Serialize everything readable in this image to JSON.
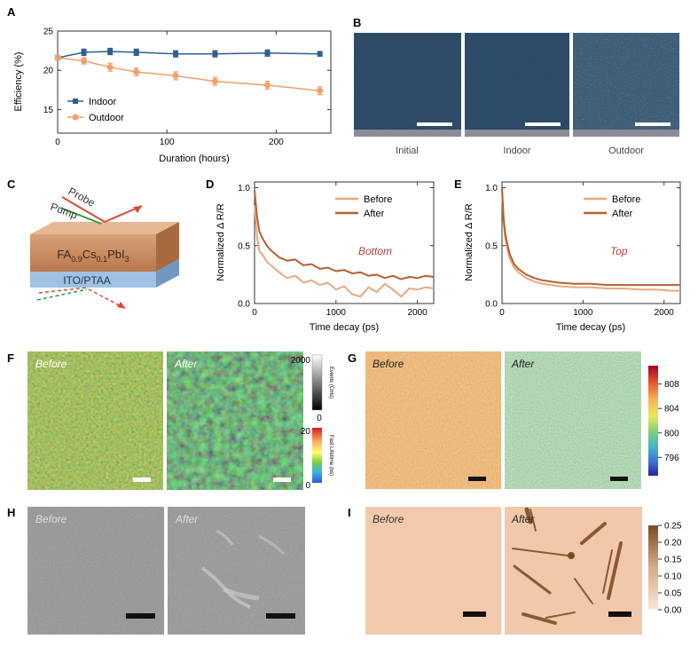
{
  "panel_labels": {
    "a": "A",
    "b": "B",
    "c": "C",
    "d": "D",
    "e": "E",
    "f": "F",
    "g": "G",
    "h": "H",
    "i": "I"
  },
  "chart_data": [
    {
      "id": "A",
      "type": "line",
      "xlabel": "Duration (hours)",
      "ylabel": "Efficiency (%)",
      "xlim": [
        0,
        250
      ],
      "ylim": [
        12,
        25
      ],
      "x_ticks": [
        0,
        100,
        200
      ],
      "y_ticks": [
        15,
        20,
        25
      ],
      "legend_position": "bottom-left",
      "series": [
        {
          "name": "Indoor",
          "color": "#2f5f8f",
          "marker": "square",
          "x": [
            0,
            24,
            48,
            72,
            108,
            144,
            192,
            240
          ],
          "y": [
            21.6,
            22.3,
            22.4,
            22.3,
            22.1,
            22.1,
            22.2,
            22.1
          ],
          "err": [
            0.3,
            0.4,
            0.4,
            0.4,
            0.4,
            0.4,
            0.4,
            0.3
          ]
        },
        {
          "name": "Outdoor",
          "color": "#f0a06a",
          "marker": "circle",
          "x": [
            0,
            24,
            48,
            72,
            108,
            144,
            192,
            240
          ],
          "y": [
            21.6,
            21.2,
            20.4,
            19.8,
            19.3,
            18.6,
            18.1,
            17.4
          ],
          "err": [
            0.3,
            0.4,
            0.5,
            0.5,
            0.5,
            0.5,
            0.5,
            0.5
          ]
        }
      ]
    },
    {
      "id": "D",
      "type": "line",
      "xlabel": "Time decay (ps)",
      "ylabel": "Normalized Δ R/R",
      "xlim": [
        0,
        2200
      ],
      "ylim": [
        0,
        1.05
      ],
      "x_ticks": [
        0,
        1000,
        2000
      ],
      "y_ticks": [
        0.0,
        0.5,
        1.0
      ],
      "annotation": "Bottom",
      "legend_position": "top-right",
      "series": [
        {
          "name": "Before",
          "color": "#e8a882",
          "x": [
            0,
            30,
            60,
            100,
            150,
            200,
            300,
            400,
            500,
            600,
            700,
            800,
            900,
            1000,
            1100,
            1200,
            1300,
            1400,
            1500,
            1600,
            1700,
            1800,
            1900,
            2000,
            2100,
            2200
          ],
          "y": [
            0.85,
            0.58,
            0.45,
            0.42,
            0.36,
            0.33,
            0.27,
            0.22,
            0.24,
            0.18,
            0.2,
            0.16,
            0.18,
            0.12,
            0.15,
            0.08,
            0.06,
            0.14,
            0.1,
            0.17,
            0.12,
            0.06,
            0.13,
            0.12,
            0.14,
            0.13
          ]
        },
        {
          "name": "After",
          "color": "#b4612f",
          "x": [
            0,
            30,
            60,
            100,
            150,
            200,
            300,
            400,
            500,
            600,
            700,
            800,
            900,
            1000,
            1100,
            1200,
            1300,
            1400,
            1500,
            1600,
            1700,
            1800,
            1900,
            2000,
            2100,
            2200
          ],
          "y": [
            0.98,
            0.75,
            0.62,
            0.56,
            0.5,
            0.46,
            0.4,
            0.37,
            0.38,
            0.33,
            0.34,
            0.3,
            0.31,
            0.28,
            0.29,
            0.26,
            0.27,
            0.24,
            0.25,
            0.22,
            0.24,
            0.21,
            0.23,
            0.22,
            0.24,
            0.23
          ]
        }
      ]
    },
    {
      "id": "E",
      "type": "line",
      "xlabel": "Time decay (ps)",
      "ylabel": "Normalized Δ R/R",
      "xlim": [
        0,
        2200
      ],
      "ylim": [
        0,
        1.05
      ],
      "x_ticks": [
        0,
        1000,
        2000
      ],
      "y_ticks": [
        0.0,
        0.5,
        1.0
      ],
      "annotation": "Top",
      "legend_position": "top-right",
      "series": [
        {
          "name": "Before",
          "color": "#e8a882",
          "x": [
            0,
            20,
            40,
            70,
            100,
            150,
            200,
            300,
            400,
            500,
            700,
            900,
            1100,
            1300,
            1500,
            1700,
            1900,
            2100,
            2200
          ],
          "y": [
            0.98,
            0.7,
            0.56,
            0.45,
            0.38,
            0.31,
            0.27,
            0.22,
            0.19,
            0.17,
            0.15,
            0.14,
            0.14,
            0.13,
            0.13,
            0.12,
            0.12,
            0.11,
            0.11
          ]
        },
        {
          "name": "After",
          "color": "#b4612f",
          "x": [
            0,
            20,
            40,
            70,
            100,
            150,
            200,
            300,
            400,
            500,
            700,
            900,
            1100,
            1300,
            1500,
            1700,
            1900,
            2100,
            2200
          ],
          "y": [
            1.0,
            0.74,
            0.6,
            0.5,
            0.42,
            0.34,
            0.3,
            0.25,
            0.22,
            0.2,
            0.18,
            0.17,
            0.17,
            0.16,
            0.16,
            0.16,
            0.16,
            0.16,
            0.16
          ]
        }
      ]
    },
    {
      "id": "F-events",
      "type": "heatmap",
      "colorbar_label": "Events (Cnts)",
      "colorbar_ticks": [
        "2000",
        "0"
      ],
      "colormap": [
        "#ffffff",
        "#000000"
      ]
    },
    {
      "id": "F-lifetime",
      "type": "heatmap",
      "colorbar_label": "Fast Lifetime (ns)",
      "colorbar_ticks": [
        "20",
        "0"
      ],
      "colormap": [
        "#d7191c",
        "#fdae61",
        "#ffff66",
        "#7ccf3c",
        "#3bb3e6",
        "#2b5bd7"
      ]
    },
    {
      "id": "G",
      "type": "heatmap",
      "colorbar_ticks": [
        "808",
        "804",
        "800",
        "796"
      ],
      "colorbar_range": [
        793,
        811
      ],
      "colormap": [
        "#a50026",
        "#e3542f",
        "#f9b95a",
        "#e6ea5a",
        "#7fcf77",
        "#3fb5c9",
        "#3b6fd1",
        "#2c1e9a"
      ]
    },
    {
      "id": "I",
      "type": "heatmap",
      "colorbar_ticks": [
        "0.25",
        "0.20",
        "0.15",
        "0.10",
        "0.05",
        "0.00"
      ],
      "colormap": [
        "#7a4a24",
        "#e7c8ab",
        "#fbe6d6"
      ]
    }
  ],
  "panel_b": {
    "labels": [
      "Initial",
      "Indoor",
      "Outdoor"
    ]
  },
  "panel_c": {
    "probe_label": "Probe",
    "pump_label": "Pump",
    "layer_top_label": "FA0.9Cs0.1PbI3",
    "layer_bottom_label": "ITO/PTAA"
  },
  "panel_f": {
    "before_label": "Before",
    "after_label": "After"
  },
  "panel_g": {
    "before_label": "Before",
    "after_label": "After"
  },
  "panel_h": {
    "before_label": "Before",
    "after_label": "After"
  },
  "panel_i": {
    "before_label": "Before",
    "after_label": "After"
  }
}
